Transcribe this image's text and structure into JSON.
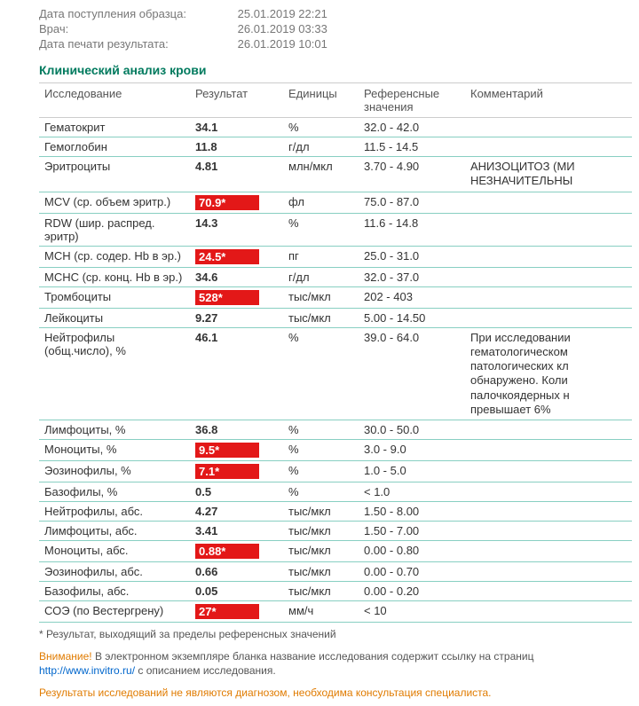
{
  "meta": {
    "sample_date_label": "Дата поступления образца:",
    "sample_date_value": "25.01.2019 22:21",
    "doctor_label": "Врач:",
    "doctor_value": "26.01.2019 03:33",
    "print_label": "Дата печати результата:",
    "print_value": "26.01.2019 10:01"
  },
  "section_title": "Клинический анализ крови",
  "columns": {
    "test": "Исследование",
    "result": "Результат",
    "units": "Единицы",
    "ref": "Референсные значения",
    "comment": "Комментарий"
  },
  "rows": [
    {
      "test": "Гематокрит",
      "result": "34.1",
      "out": false,
      "units": "%",
      "ref": "32.0 - 42.0",
      "comment": ""
    },
    {
      "test": "Гемоглобин",
      "result": "11.8",
      "out": false,
      "units": "г/дл",
      "ref": "11.5 - 14.5",
      "comment": ""
    },
    {
      "test": "Эритроциты",
      "result": "4.81",
      "out": false,
      "units": "млн/мкл",
      "ref": "3.70 - 4.90",
      "comment": "АНИЗОЦИТОЗ (МИ НЕЗНАЧИТЕЛЬНЫ"
    },
    {
      "test": "MCV (ср. объем эритр.)",
      "result": "70.9*",
      "out": true,
      "units": "фл",
      "ref": "75.0 - 87.0",
      "comment": ""
    },
    {
      "test": "RDW (шир. распред. эритр)",
      "result": "14.3",
      "out": false,
      "units": "%",
      "ref": "11.6 - 14.8",
      "comment": ""
    },
    {
      "test": "MCH (ср. содер. Hb в эр.)",
      "result": "24.5*",
      "out": true,
      "units": "пг",
      "ref": "25.0 - 31.0",
      "comment": ""
    },
    {
      "test": "MCHC (ср. конц. Hb в эр.)",
      "result": "34.6",
      "out": false,
      "units": "г/дл",
      "ref": "32.0 - 37.0",
      "comment": ""
    },
    {
      "test": "Тромбоциты",
      "result": "528*",
      "out": true,
      "units": "тыс/мкл",
      "ref": "202 - 403",
      "comment": ""
    },
    {
      "test": "Лейкоциты",
      "result": "9.27",
      "out": false,
      "units": "тыс/мкл",
      "ref": "5.00 - 14.50",
      "comment": ""
    },
    {
      "test": "Нейтрофилы (общ.число), %",
      "result": "46.1",
      "out": false,
      "units": "%",
      "ref": "39.0 - 64.0",
      "comment": "При исследовании гематологическом патологических кл обнаружено. Коли палочкоядерных н превышает 6%"
    },
    {
      "test": "Лимфоциты, %",
      "result": "36.8",
      "out": false,
      "units": "%",
      "ref": "30.0 - 50.0",
      "comment": ""
    },
    {
      "test": "Моноциты, %",
      "result": "9.5*",
      "out": true,
      "units": "%",
      "ref": "3.0 - 9.0",
      "comment": ""
    },
    {
      "test": "Эозинофилы, %",
      "result": "7.1*",
      "out": true,
      "units": "%",
      "ref": "1.0 - 5.0",
      "comment": ""
    },
    {
      "test": "Базофилы, %",
      "result": "0.5",
      "out": false,
      "units": "%",
      "ref": "< 1.0",
      "comment": ""
    },
    {
      "test": "Нейтрофилы, абс.",
      "result": "4.27",
      "out": false,
      "units": "тыс/мкл",
      "ref": "1.50 - 8.00",
      "comment": ""
    },
    {
      "test": "Лимфоциты, абс.",
      "result": "3.41",
      "out": false,
      "units": "тыс/мкл",
      "ref": "1.50 - 7.00",
      "comment": ""
    },
    {
      "test": "Моноциты, абс.",
      "result": "0.88*",
      "out": true,
      "units": "тыс/мкл",
      "ref": "0.00 - 0.80",
      "comment": ""
    },
    {
      "test": "Эозинофилы, абс.",
      "result": "0.66",
      "out": false,
      "units": "тыс/мкл",
      "ref": "0.00 - 0.70",
      "comment": ""
    },
    {
      "test": "Базофилы, абс.",
      "result": "0.05",
      "out": false,
      "units": "тыс/мкл",
      "ref": "0.00 - 0.20",
      "comment": ""
    },
    {
      "test": "СОЭ (по Вестергрену)",
      "result": "27*",
      "out": true,
      "units": "мм/ч",
      "ref": "< 10",
      "comment": ""
    }
  ],
  "footnote": "* Результат, выходящий за пределы референсных значений",
  "warning": {
    "label": "Внимание!",
    "text_before": " В электронном экземпляре бланка название исследования содержит ссылку на страниц",
    "url": "http://www.invitro.ru/",
    "text_after": " с описанием исследования."
  },
  "disclaimer": "Результаты исследований не являются диагнозом, необходима консультация специалиста.",
  "colors": {
    "accent_green": "#007a5e",
    "row_border": "#88cfc2",
    "out_bg": "#e31818",
    "warn_orange": "#e07b00",
    "link_blue": "#0066cc"
  }
}
